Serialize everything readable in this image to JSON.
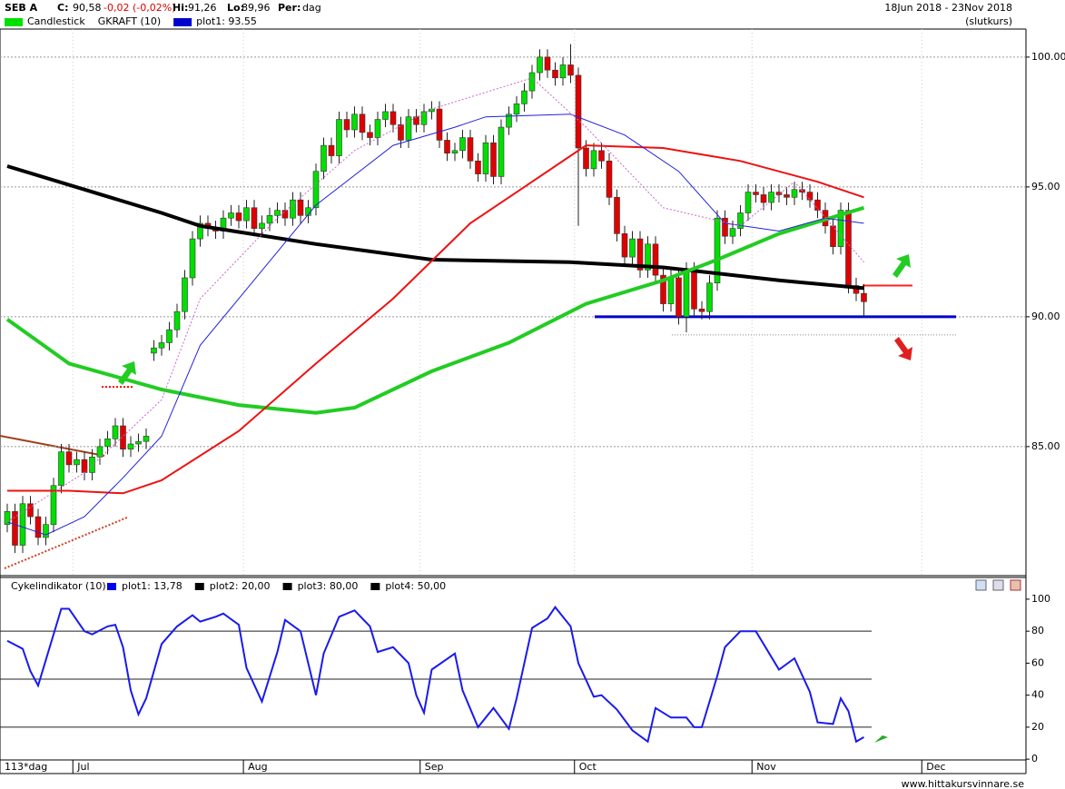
{
  "header": {
    "symbol": "SEB A",
    "close_label": "C:",
    "close": "90,58",
    "change": "-0,02 (-0,02%)",
    "high_label": "Hi:",
    "high": "91,26",
    "low_label": "Lo:",
    "low": "89,96",
    "period_label": "Per:",
    "period": "dag",
    "range": "18Jun 2018 - 23Nov 2018",
    "mode": "(slutkurs)",
    "site": "www.hittakursvinnare.se",
    "bars_label": "113*dag"
  },
  "chart_data": [
    {
      "type": "candlestick",
      "up_color": "#00e000",
      "down_color": "#e00000",
      "legend": [
        {
          "name": "Candlestick",
          "color": "#00e000"
        },
        {
          "name": "GKRAFT (10)"
        },
        {
          "name": "plot1: 93.55",
          "color": "#0000cc"
        }
      ],
      "open": [
        82.0,
        82.5,
        81.2,
        82.8,
        82.3,
        81.5,
        82.0,
        83.5,
        84.8,
        84.3,
        84.5,
        84.0,
        84.6,
        85.0,
        85.3,
        85.8,
        84.9,
        85.1,
        85.2,
        88.6,
        88.8,
        89.0,
        89.5,
        90.2,
        91.5,
        93.0,
        93.6,
        93.4,
        93.3,
        93.8,
        94.0,
        93.7,
        94.2,
        93.4,
        93.6,
        93.9,
        94.1,
        93.8,
        94.5,
        93.9,
        94.2,
        95.6,
        96.6,
        96.2,
        97.6,
        97.2,
        97.8,
        97.1,
        96.9,
        97.6,
        97.9,
        97.4,
        96.8,
        97.7,
        97.4,
        97.9,
        98.0,
        96.8,
        96.3,
        96.4,
        96.9,
        96.0,
        95.5,
        96.7,
        95.4,
        97.3,
        97.8,
        98.2,
        98.7,
        99.4,
        100.0,
        99.5,
        99.2,
        99.7,
        99.3,
        96.5,
        95.7,
        96.4,
        96.0,
        94.6,
        93.2,
        92.3,
        93.0,
        91.8,
        92.8,
        91.6,
        90.5,
        91.5,
        90.0,
        91.8,
        90.3,
        90.2,
        91.3,
        93.8,
        93.1,
        93.4,
        94.0,
        94.8,
        94.7,
        94.4,
        94.8,
        94.7,
        94.6,
        94.9,
        94.8,
        94.5,
        94.1,
        93.5,
        92.7,
        94.1,
        91.2,
        90.9
      ],
      "high": [
        82.8,
        82.8,
        83.1,
        83.1,
        82.6,
        82.3,
        83.8,
        85.1,
        85.1,
        84.8,
        84.8,
        84.9,
        85.3,
        85.6,
        86.1,
        86.1,
        85.4,
        85.5,
        85.7,
        89.1,
        89.3,
        89.8,
        90.5,
        91.8,
        93.3,
        93.9,
        93.9,
        93.7,
        94.1,
        94.3,
        94.3,
        94.5,
        94.5,
        93.9,
        94.2,
        94.4,
        94.4,
        94.8,
        94.8,
        94.5,
        95.9,
        96.9,
        96.9,
        97.9,
        97.9,
        98.1,
        98.1,
        97.4,
        97.9,
        98.2,
        98.2,
        97.7,
        98.0,
        98.0,
        98.2,
        98.3,
        98.3,
        97.1,
        96.7,
        97.2,
        97.2,
        96.3,
        97.0,
        97.0,
        97.6,
        98.1,
        98.5,
        99.0,
        99.7,
        100.3,
        100.3,
        99.8,
        100.0,
        100.5,
        99.6,
        96.8,
        96.7,
        96.7,
        96.3,
        94.9,
        93.5,
        93.3,
        93.3,
        93.1,
        93.1,
        91.9,
        91.8,
        91.8,
        92.1,
        92.1,
        90.6,
        91.6,
        94.1,
        94.1,
        93.7,
        94.3,
        95.1,
        95.1,
        95.0,
        95.1,
        95.1,
        95.0,
        95.2,
        95.2,
        95.1,
        94.8,
        94.4,
        93.8,
        94.4,
        94.4,
        91.5,
        91.26
      ],
      "low": [
        81.7,
        80.9,
        80.9,
        82.0,
        81.2,
        81.2,
        81.7,
        83.2,
        84.0,
        84.0,
        83.7,
        83.7,
        84.3,
        84.7,
        85.0,
        84.6,
        84.6,
        84.8,
        84.9,
        88.3,
        88.5,
        88.7,
        89.2,
        89.9,
        91.2,
        92.7,
        93.1,
        93.0,
        93.0,
        93.5,
        93.4,
        93.4,
        93.1,
        93.1,
        93.3,
        93.6,
        93.5,
        93.5,
        93.6,
        93.6,
        93.9,
        95.3,
        95.9,
        95.9,
        96.9,
        96.9,
        96.8,
        96.6,
        96.6,
        97.3,
        97.1,
        96.5,
        96.5,
        97.1,
        97.1,
        97.6,
        96.5,
        96.0,
        96.0,
        96.1,
        95.7,
        95.2,
        95.2,
        95.1,
        95.1,
        97.0,
        97.5,
        97.9,
        98.4,
        99.1,
        99.2,
        98.9,
        98.9,
        99.0,
        93.5,
        95.4,
        95.4,
        95.7,
        94.3,
        92.9,
        92.0,
        92.0,
        91.5,
        91.5,
        91.3,
        90.2,
        90.2,
        89.7,
        89.4,
        90.0,
        89.9,
        89.9,
        91.0,
        92.8,
        92.8,
        93.1,
        93.7,
        94.4,
        94.1,
        94.1,
        94.4,
        94.3,
        94.3,
        94.5,
        94.2,
        93.8,
        93.2,
        92.4,
        92.4,
        90.9,
        90.6,
        89.96
      ],
      "close": [
        82.5,
        81.2,
        82.8,
        82.3,
        81.5,
        82.0,
        83.5,
        84.8,
        84.3,
        84.5,
        84.0,
        84.6,
        85.0,
        85.3,
        85.8,
        84.9,
        85.1,
        85.2,
        85.4,
        88.8,
        89.0,
        89.5,
        90.2,
        91.5,
        93.0,
        93.6,
        93.4,
        93.3,
        93.8,
        94.0,
        93.7,
        94.2,
        93.4,
        93.6,
        93.9,
        94.1,
        93.8,
        94.5,
        93.9,
        94.2,
        95.6,
        96.6,
        96.2,
        97.6,
        97.2,
        97.8,
        97.1,
        96.9,
        97.6,
        97.9,
        97.4,
        96.8,
        97.7,
        97.4,
        97.9,
        98.0,
        96.8,
        96.3,
        96.4,
        96.9,
        96.0,
        95.5,
        96.7,
        95.4,
        97.3,
        97.8,
        98.2,
        98.7,
        99.4,
        100.0,
        99.5,
        99.2,
        99.7,
        99.3,
        96.5,
        95.7,
        96.4,
        96.0,
        94.6,
        93.2,
        92.3,
        93.0,
        91.8,
        92.8,
        91.6,
        90.5,
        91.5,
        90.0,
        91.8,
        90.3,
        90.2,
        91.3,
        93.8,
        93.1,
        93.4,
        94.0,
        94.8,
        94.7,
        94.4,
        94.8,
        94.7,
        94.6,
        94.9,
        94.8,
        94.5,
        94.1,
        93.5,
        92.7,
        94.1,
        91.2,
        90.9,
        90.58
      ],
      "series": [
        {
          "color": "#000000",
          "width": 4,
          "x": [
            0,
            20,
            25,
            40,
            55,
            73,
            85,
            100,
            111
          ],
          "values": [
            95.8,
            94.0,
            93.5,
            92.8,
            92.2,
            92.1,
            91.9,
            91.4,
            91.1
          ]
        },
        {
          "color": "#22cc22",
          "width": 4,
          "x": [
            0,
            8,
            20,
            30,
            40,
            45,
            55,
            65,
            75,
            85,
            92,
            100,
            111
          ],
          "values": [
            89.9,
            88.2,
            87.2,
            86.6,
            86.3,
            86.5,
            87.9,
            89.0,
            90.5,
            91.4,
            92.2,
            93.2,
            94.2
          ]
        },
        {
          "color": "#ee1111",
          "width": 2,
          "x": [
            0,
            8,
            15,
            20,
            30,
            40,
            50,
            60,
            67,
            75,
            85,
            95,
            105,
            111
          ],
          "values": [
            83.3,
            83.3,
            83.2,
            83.7,
            85.6,
            88.2,
            90.7,
            93.6,
            95.0,
            96.6,
            96.5,
            96.0,
            95.2,
            94.6
          ]
        },
        {
          "color": "#2222dd",
          "width": 1,
          "x": [
            0,
            5,
            10,
            15,
            20,
            25,
            30,
            40,
            50,
            58,
            62,
            73,
            80,
            87,
            93,
            100,
            106,
            111
          ],
          "values": [
            82.1,
            81.6,
            82.3,
            83.8,
            85.4,
            88.9,
            90.7,
            94.3,
            96.6,
            97.3,
            97.7,
            97.8,
            97.0,
            95.6,
            93.6,
            93.3,
            93.8,
            93.6
          ]
        },
        {
          "color": "#cc66cc",
          "width": 1,
          "dash": "2 2",
          "x": [
            0,
            10,
            20,
            25,
            35,
            45,
            55,
            68,
            75,
            85,
            95,
            102,
            111
          ],
          "values": [
            82.1,
            84.0,
            86.8,
            90.7,
            93.8,
            96.4,
            98.0,
            99.2,
            97.3,
            94.2,
            93.5,
            95.2,
            92.1
          ]
        }
      ],
      "levels": [
        {
          "value": 90.0,
          "color": "#0000cc",
          "width": 3
        },
        {
          "value": 91.2,
          "color": "#ff2222",
          "width": 2
        },
        {
          "value": 89.3,
          "color": "#888888",
          "width": 1,
          "dash": "1 2"
        },
        {
          "value": 87.3,
          "color": "#ff0000",
          "width": 2,
          "dash": "2 2"
        }
      ],
      "xlim": [
        -0.94,
        132
      ],
      "ylim": [
        80.1,
        101.15
      ],
      "xticks": [
        {
          "value": 8.5,
          "label": "Jul"
        },
        {
          "value": 30.6,
          "label": "Aug"
        },
        {
          "value": 53.5,
          "label": "Sep"
        },
        {
          "value": 73.5,
          "label": "Oct"
        },
        {
          "value": 96.5,
          "label": "Nov"
        },
        {
          "value": 118.5,
          "label": "Dec"
        }
      ],
      "yticks": [
        {
          "value": 85,
          "label": "85.00"
        },
        {
          "value": 90,
          "label": "90.00"
        },
        {
          "value": 95,
          "label": "95.00"
        },
        {
          "value": 100,
          "label": "100.00"
        }
      ],
      "grid": true
    },
    {
      "type": "line",
      "title": "Cykelindikator (10)",
      "legend": [
        {
          "name": "plot1: 13,78",
          "color": "#0000ee"
        },
        {
          "name": "plot2: 20,00",
          "color": "#000000"
        },
        {
          "name": "plot3: 80,00",
          "color": "#000000"
        },
        {
          "name": "plot4: 50,00",
          "color": "#000000"
        }
      ],
      "series": [
        {
          "color": "#1a1aee",
          "x": [
            0,
            2,
            3,
            4,
            7,
            8,
            10,
            11,
            13,
            14,
            15,
            16,
            17,
            18,
            20,
            22,
            24,
            25,
            27,
            28,
            30,
            31,
            33,
            35,
            36,
            38,
            40,
            41,
            43,
            45,
            47,
            48,
            50,
            52,
            53,
            54,
            55,
            58,
            59,
            61,
            63,
            65,
            66,
            68,
            70,
            71,
            73,
            74,
            76,
            77,
            79,
            81,
            83,
            84,
            86,
            88,
            89,
            90,
            92,
            93,
            95,
            97,
            98,
            100,
            102,
            104,
            105,
            107,
            108,
            109,
            110,
            111
          ],
          "values": [
            74,
            69,
            55,
            46,
            94,
            94,
            80,
            78,
            83,
            84,
            70,
            43,
            28,
            38,
            72,
            83,
            90,
            86,
            89,
            91,
            84,
            57,
            36,
            67,
            87,
            80,
            40,
            66,
            89,
            93,
            83,
            67,
            70,
            60,
            40,
            29,
            56,
            66,
            43,
            20,
            32,
            19,
            38,
            82,
            88,
            95,
            83,
            60,
            39,
            40,
            31,
            18,
            11,
            32,
            26,
            26,
            20,
            20,
            52,
            70,
            80,
            80,
            72,
            56,
            63,
            42,
            23,
            22,
            38,
            30,
            11,
            13.78
          ]
        }
      ],
      "levels": [
        20,
        80,
        50
      ],
      "xlim": [
        -0.94,
        132
      ],
      "ylim": [
        -9,
        104.5
      ],
      "yticks": [
        0,
        20,
        40,
        60,
        80,
        100
      ]
    }
  ]
}
